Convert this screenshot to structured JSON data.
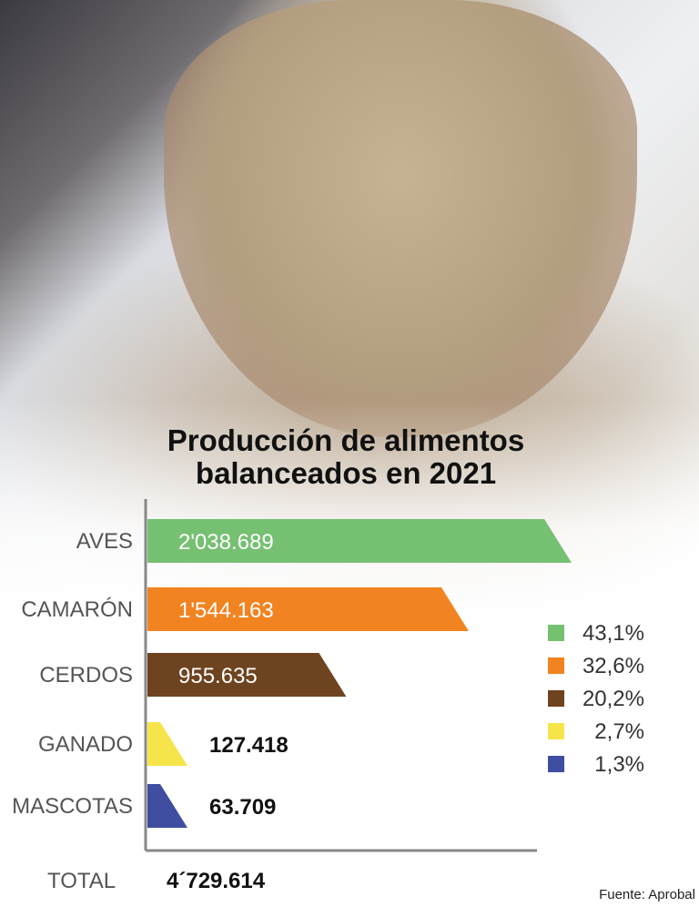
{
  "title_line1": "Producción de alimentos",
  "title_line2": "balanceados en 2021",
  "total_label": "TOTAL",
  "total_value": "4´729.614",
  "source": "Fuente: Aprobal",
  "chart_data": {
    "type": "bar",
    "orientation": "horizontal",
    "title": "Producción de alimentos balanceados en 2021",
    "categories": [
      "AVES",
      "CAMARÓN",
      "CERDOS",
      "GANADO",
      "MASCOTAS"
    ],
    "values": [
      2038689,
      1544163,
      955635,
      127418,
      63709
    ],
    "value_labels": [
      "2'038.689",
      "1'544.163",
      "955.635",
      "127.418",
      "63.709"
    ],
    "percentages": [
      "43,1%",
      "32,6%",
      "20,2%",
      "2,7%",
      "1,3%"
    ],
    "colors": [
      "#76c072",
      "#f18421",
      "#6e4420",
      "#f6e54a",
      "#3f4ea1"
    ],
    "label_inside": [
      true,
      true,
      true,
      false,
      false
    ],
    "xlim": [
      0,
      2038689
    ],
    "legend_position": "right",
    "grid": false
  }
}
